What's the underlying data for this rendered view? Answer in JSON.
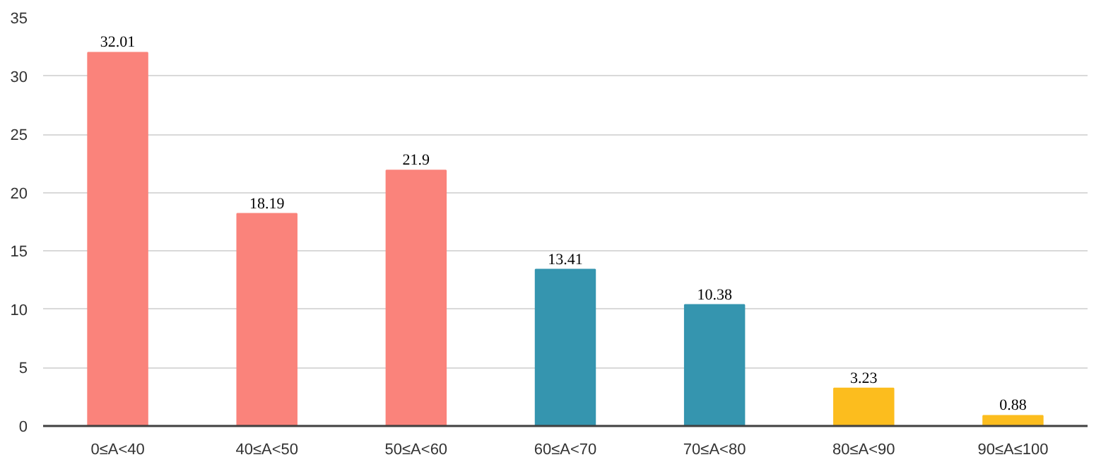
{
  "chart_data": {
    "type": "bar",
    "categories": [
      "0≤A<40",
      "40≤A<50",
      "50≤A<60",
      "60≤A<70",
      "70≤A<80",
      "80≤A<90",
      "90≤A≤100"
    ],
    "values": [
      32.01,
      18.19,
      21.9,
      13.41,
      10.38,
      3.23,
      0.88
    ],
    "colors": [
      "#fa837b",
      "#fa837b",
      "#fa837b",
      "#3595af",
      "#3595af",
      "#fcbd1e",
      "#fcbd1e"
    ],
    "ylim": [
      0,
      35
    ],
    "yticks": [
      0,
      5,
      10,
      15,
      20,
      25,
      30,
      35
    ],
    "grid": "y",
    "data_labels": true
  }
}
